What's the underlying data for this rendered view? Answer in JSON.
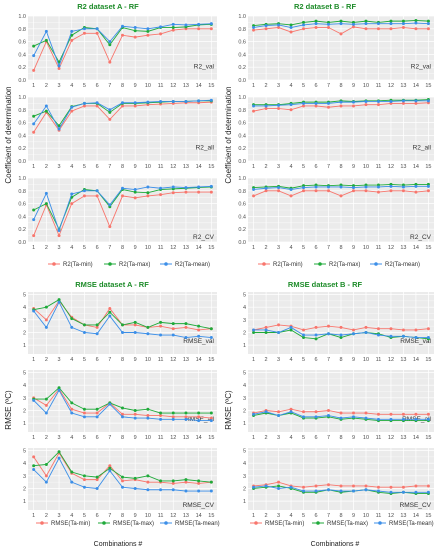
{
  "colors": {
    "min": "#F8766D",
    "max": "#1FAA3A",
    "mean": "#3C8FE8",
    "panel": "#EBEBEB",
    "grid": "#FFFFFF",
    "title": "#1E8C2A"
  },
  "section_titles": {
    "r2a": "R2 dataset A - RF",
    "r2b": "R2 dataset B - RF",
    "rmsea": "RMSE dataset A - RF",
    "rmseb": "RMSE dataset B - RF"
  },
  "axis": {
    "r2_ylabel": "Coefficient of determination",
    "rmse_ylabel": "RMSE (ºC)",
    "xlabel": "Combinations #"
  },
  "legend": {
    "r2": [
      "R2(Ta-min)",
      "R2(Ta-max)",
      "R2(Ta-mean)"
    ],
    "rmse": [
      "RMSE(Ta-min)",
      "RMSE(Ta-max)",
      "RMSE(Ta-mean)"
    ]
  },
  "chart_data": [
    {
      "type": "line",
      "title": "R2 dataset A - RF",
      "ylabel": "Coefficient of determination",
      "x": [
        1,
        2,
        3,
        4,
        5,
        6,
        7,
        8,
        9,
        10,
        11,
        12,
        13,
        14,
        15
      ],
      "y_ticks": [
        0.0,
        0.2,
        0.4,
        0.6,
        0.8,
        1.0
      ],
      "ylim": [
        0,
        1
      ],
      "facets": [
        {
          "label": "R2_val",
          "series": [
            {
              "name": "R2(Ta-min)",
              "values": [
                0.15,
                0.6,
                0.18,
                0.62,
                0.73,
                0.73,
                0.28,
                0.7,
                0.67,
                0.7,
                0.72,
                0.78,
                0.8,
                0.8,
                0.8
              ]
            },
            {
              "name": "R2(Ta-max)",
              "values": [
                0.53,
                0.62,
                0.28,
                0.7,
                0.82,
                0.8,
                0.55,
                0.82,
                0.77,
                0.76,
                0.82,
                0.82,
                0.83,
                0.86,
                0.87
              ]
            },
            {
              "name": "R2(Ta-mean)",
              "values": [
                0.38,
                0.76,
                0.22,
                0.76,
                0.8,
                0.8,
                0.6,
                0.84,
                0.82,
                0.8,
                0.83,
                0.87,
                0.86,
                0.87,
                0.88
              ]
            }
          ]
        },
        {
          "label": "R2_all",
          "series": [
            {
              "name": "R2(Ta-min)",
              "values": [
                0.45,
                0.76,
                0.48,
                0.78,
                0.86,
                0.86,
                0.65,
                0.86,
                0.86,
                0.88,
                0.89,
                0.9,
                0.91,
                0.91,
                0.92
              ]
            },
            {
              "name": "R2(Ta-max)",
              "values": [
                0.7,
                0.78,
                0.55,
                0.85,
                0.9,
                0.9,
                0.76,
                0.9,
                0.9,
                0.91,
                0.92,
                0.93,
                0.93,
                0.94,
                0.94
              ]
            },
            {
              "name": "R2(Ta-mean)",
              "values": [
                0.58,
                0.86,
                0.5,
                0.84,
                0.9,
                0.91,
                0.8,
                0.91,
                0.91,
                0.92,
                0.93,
                0.93,
                0.93,
                0.94,
                0.95
              ]
            }
          ]
        },
        {
          "label": "R2_CV",
          "series": [
            {
              "name": "R2(Ta-min)",
              "values": [
                0.1,
                0.58,
                0.1,
                0.6,
                0.72,
                0.72,
                0.24,
                0.72,
                0.69,
                0.72,
                0.74,
                0.77,
                0.78,
                0.78,
                0.78
              ]
            },
            {
              "name": "R2(Ta-max)",
              "values": [
                0.5,
                0.6,
                0.2,
                0.7,
                0.82,
                0.8,
                0.55,
                0.82,
                0.78,
                0.77,
                0.82,
                0.83,
                0.84,
                0.85,
                0.86
              ]
            },
            {
              "name": "R2(Ta-mean)",
              "values": [
                0.35,
                0.76,
                0.18,
                0.75,
                0.8,
                0.8,
                0.58,
                0.84,
                0.82,
                0.86,
                0.84,
                0.86,
                0.85,
                0.86,
                0.87
              ]
            }
          ]
        }
      ]
    },
    {
      "type": "line",
      "title": "R2 dataset B - RF",
      "ylabel": "Coefficient of determination",
      "x": [
        1,
        2,
        3,
        4,
        5,
        6,
        7,
        8,
        9,
        10,
        11,
        12,
        13,
        14,
        15
      ],
      "y_ticks": [
        0.0,
        0.2,
        0.4,
        0.6,
        0.8,
        1.0
      ],
      "ylim": [
        0,
        1
      ],
      "facets": [
        {
          "label": "R2_val",
          "series": [
            {
              "name": "R2(Ta-min)",
              "values": [
                0.78,
                0.8,
                0.82,
                0.75,
                0.8,
                0.82,
                0.82,
                0.72,
                0.83,
                0.8,
                0.8,
                0.8,
                0.82,
                0.8,
                0.8
              ]
            },
            {
              "name": "R2(Ta-max)",
              "values": [
                0.85,
                0.87,
                0.88,
                0.86,
                0.9,
                0.92,
                0.9,
                0.92,
                0.9,
                0.92,
                0.9,
                0.92,
                0.92,
                0.93,
                0.92
              ]
            },
            {
              "name": "R2(Ta-mean)",
              "values": [
                0.82,
                0.85,
                0.86,
                0.82,
                0.86,
                0.88,
                0.87,
                0.88,
                0.87,
                0.88,
                0.88,
                0.88,
                0.88,
                0.89,
                0.88
              ]
            }
          ]
        },
        {
          "label": "R2_all",
          "series": [
            {
              "name": "R2(Ta-min)",
              "values": [
                0.78,
                0.82,
                0.82,
                0.8,
                0.86,
                0.86,
                0.84,
                0.86,
                0.86,
                0.88,
                0.88,
                0.9,
                0.9,
                0.9,
                0.91
              ]
            },
            {
              "name": "R2(Ta-max)",
              "values": [
                0.88,
                0.88,
                0.88,
                0.9,
                0.92,
                0.92,
                0.92,
                0.94,
                0.93,
                0.94,
                0.94,
                0.95,
                0.95,
                0.95,
                0.96
              ]
            },
            {
              "name": "R2(Ta-mean)",
              "values": [
                0.86,
                0.86,
                0.87,
                0.88,
                0.9,
                0.9,
                0.9,
                0.92,
                0.92,
                0.93,
                0.93,
                0.93,
                0.94,
                0.94,
                0.94
              ]
            }
          ]
        },
        {
          "label": "R2_CV",
          "series": [
            {
              "name": "R2(Ta-min)",
              "values": [
                0.72,
                0.8,
                0.8,
                0.72,
                0.8,
                0.8,
                0.8,
                0.72,
                0.8,
                0.8,
                0.78,
                0.8,
                0.8,
                0.78,
                0.8
              ]
            },
            {
              "name": "R2(Ta-max)",
              "values": [
                0.85,
                0.86,
                0.87,
                0.84,
                0.88,
                0.89,
                0.88,
                0.89,
                0.88,
                0.89,
                0.89,
                0.9,
                0.89,
                0.9,
                0.9
              ]
            },
            {
              "name": "R2(Ta-mean)",
              "values": [
                0.82,
                0.84,
                0.85,
                0.82,
                0.85,
                0.86,
                0.86,
                0.86,
                0.85,
                0.86,
                0.86,
                0.87,
                0.86,
                0.87,
                0.87
              ]
            }
          ]
        }
      ]
    },
    {
      "type": "line",
      "title": "RMSE dataset A - RF",
      "ylabel": "RMSE (ºC)",
      "x": [
        1,
        2,
        3,
        4,
        5,
        6,
        7,
        8,
        9,
        10,
        11,
        12,
        13,
        14,
        15
      ],
      "y_ticks": [
        1,
        2,
        3,
        4,
        5
      ],
      "ylim": [
        0.3,
        5.2
      ],
      "facets": [
        {
          "label": "RMSE_val",
          "series": [
            {
              "name": "RMSE(Ta-min)",
              "values": [
                3.9,
                3.0,
                4.5,
                3.2,
                2.6,
                2.4,
                3.9,
                2.6,
                2.6,
                2.4,
                2.5,
                2.3,
                2.4,
                2.2,
                2.3
              ]
            },
            {
              "name": "RMSE(Ta-max)",
              "values": [
                3.8,
                4.0,
                4.6,
                3.1,
                2.6,
                2.6,
                3.6,
                2.6,
                2.8,
                2.4,
                2.8,
                2.7,
                2.7,
                2.5,
                2.3
              ]
            },
            {
              "name": "RMSE(Ta-mean)",
              "values": [
                3.7,
                2.4,
                4.4,
                2.4,
                2.0,
                1.9,
                3.3,
                2.0,
                2.0,
                1.9,
                1.8,
                1.8,
                1.6,
                1.7,
                1.6
              ]
            }
          ]
        },
        {
          "label": "RMSE_all",
          "series": [
            {
              "name": "RMSE(Ta-min)",
              "values": [
                3.0,
                2.4,
                3.7,
                2.1,
                1.8,
                1.8,
                2.6,
                1.7,
                1.7,
                1.6,
                1.6,
                1.5,
                1.5,
                1.5,
                1.4
              ]
            },
            {
              "name": "RMSE(Ta-max)",
              "values": [
                2.9,
                2.9,
                3.8,
                2.6,
                2.1,
                2.1,
                2.6,
                2.2,
                2.0,
                2.1,
                1.8,
                1.8,
                1.8,
                1.8,
                1.8
              ]
            },
            {
              "name": "RMSE(Ta-mean)",
              "values": [
                2.8,
                1.8,
                3.6,
                1.8,
                1.5,
                1.5,
                2.5,
                1.5,
                1.4,
                1.4,
                1.3,
                1.3,
                1.3,
                1.2,
                1.2
              ]
            }
          ]
        },
        {
          "label": "RMSE_CV",
          "series": [
            {
              "name": "RMSE(Ta-min)",
              "values": [
                4.5,
                3.0,
                4.8,
                3.2,
                2.7,
                2.7,
                3.8,
                2.6,
                2.7,
                2.5,
                2.5,
                2.4,
                2.5,
                2.4,
                2.5
              ]
            },
            {
              "name": "RMSE(Ta-max)",
              "values": [
                3.8,
                3.9,
                4.9,
                3.3,
                3.0,
                2.9,
                3.6,
                2.9,
                2.8,
                3.0,
                2.6,
                2.6,
                2.7,
                2.6,
                2.5
              ]
            },
            {
              "name": "RMSE(Ta-mean)",
              "values": [
                3.5,
                2.5,
                4.4,
                2.5,
                2.1,
                2.0,
                3.4,
                2.1,
                2.0,
                1.9,
                1.9,
                1.9,
                1.8,
                1.8,
                1.8
              ]
            }
          ]
        }
      ]
    },
    {
      "type": "line",
      "title": "RMSE dataset B - RF",
      "ylabel": "RMSE (ºC)",
      "x": [
        1,
        2,
        3,
        4,
        5,
        6,
        7,
        8,
        9,
        10,
        11,
        12,
        13,
        14,
        15
      ],
      "y_ticks": [
        1,
        2,
        3,
        4,
        5
      ],
      "ylim": [
        0.3,
        5.2
      ],
      "facets": [
        {
          "label": "RMSE_val",
          "series": [
            {
              "name": "RMSE(Ta-min)",
              "values": [
                2.2,
                2.4,
                2.6,
                2.5,
                2.2,
                2.4,
                2.5,
                2.4,
                2.2,
                2.4,
                2.3,
                2.3,
                2.2,
                2.2,
                2.3
              ]
            },
            {
              "name": "RMSE(Ta-max)",
              "values": [
                2.0,
                2.0,
                2.0,
                2.2,
                1.6,
                1.5,
                1.9,
                1.6,
                1.9,
                2.0,
                1.9,
                1.6,
                1.7,
                1.6,
                1.5
              ]
            },
            {
              "name": "RMSE(Ta-mean)",
              "values": [
                2.2,
                2.2,
                2.0,
                2.4,
                1.8,
                1.8,
                1.9,
                1.8,
                1.9,
                2.0,
                1.8,
                1.7,
                1.7,
                1.6,
                1.6
              ]
            }
          ]
        },
        {
          "label": "RMSE_all",
          "series": [
            {
              "name": "RMSE(Ta-min)",
              "values": [
                1.8,
                2.0,
                1.9,
                2.1,
                1.9,
                1.9,
                2.0,
                1.8,
                1.8,
                1.8,
                1.7,
                1.7,
                1.7,
                1.7,
                1.7
              ]
            },
            {
              "name": "RMSE(Ta-max)",
              "values": [
                1.6,
                1.8,
                1.6,
                1.8,
                1.4,
                1.4,
                1.5,
                1.3,
                1.4,
                1.3,
                1.2,
                1.2,
                1.2,
                1.2,
                1.2
              ]
            },
            {
              "name": "RMSE(Ta-mean)",
              "values": [
                1.7,
                1.9,
                1.6,
                1.9,
                1.5,
                1.5,
                1.6,
                1.4,
                1.5,
                1.4,
                1.3,
                1.3,
                1.3,
                1.3,
                1.3
              ]
            }
          ]
        },
        {
          "label": "RMSE_CV",
          "series": [
            {
              "name": "RMSE(Ta-min)",
              "values": [
                2.2,
                2.3,
                2.5,
                2.2,
                2.1,
                2.2,
                2.3,
                2.2,
                2.2,
                2.2,
                2.1,
                2.1,
                2.1,
                2.2,
                2.2
              ]
            },
            {
              "name": "RMSE(Ta-max)",
              "values": [
                2.0,
                2.1,
                2.2,
                2.0,
                1.7,
                1.7,
                1.9,
                1.7,
                1.8,
                1.9,
                1.7,
                1.6,
                1.7,
                1.6,
                1.6
              ]
            },
            {
              "name": "RMSE(Ta-mean)",
              "values": [
                2.1,
                2.2,
                2.0,
                2.1,
                1.8,
                1.8,
                1.9,
                1.8,
                1.8,
                1.9,
                1.8,
                1.7,
                1.7,
                1.7,
                1.7
              ]
            }
          ]
        }
      ]
    }
  ]
}
